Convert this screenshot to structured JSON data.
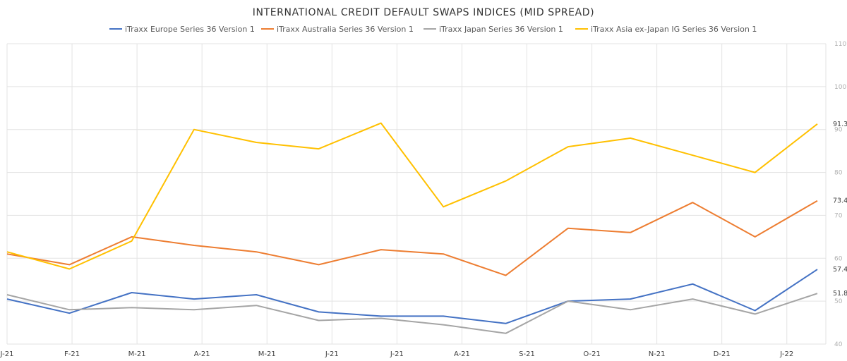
{
  "chart_data": {
    "type": "line",
    "title": "INTERNATIONAL CREDIT DEFAULT SWAPS INDICES (MID SPREAD)",
    "xlabel": "",
    "ylabel": "",
    "ylim": [
      40,
      110
    ],
    "yticks": [
      40,
      50,
      60,
      70,
      80,
      90,
      100,
      110
    ],
    "grid": true,
    "legend_position": "top",
    "x_tick_labels": [
      "J-21",
      "F-21",
      "M-21",
      "A-21",
      "M-21",
      "J-21",
      "J-21",
      "A-21",
      "S-21",
      "O-21",
      "N-21",
      "D-21",
      "J-22"
    ],
    "x": [
      "J-21",
      "F-21",
      "M-21",
      "A-21",
      "M-21",
      "J-21",
      "J-21",
      "A-21",
      "S-21",
      "O-21",
      "N-21",
      "D-21",
      "J-22",
      "end"
    ],
    "series": [
      {
        "name": "iTraxx Europe Series 36 Version 1",
        "color": "#4472C4",
        "end_label": "57.4",
        "values": [
          50.5,
          47.2,
          52.0,
          50.5,
          51.5,
          47.5,
          46.5,
          46.5,
          44.8,
          50.0,
          50.5,
          54.0,
          47.8,
          57.4
        ]
      },
      {
        "name": "iTraxx Australia Series 36 Version 1",
        "color": "#ED7D31",
        "end_label": "73.4",
        "values": [
          61.0,
          58.5,
          65.0,
          63.0,
          61.5,
          58.5,
          62.0,
          61.0,
          56.0,
          67.0,
          66.0,
          73.0,
          65.0,
          73.4
        ]
      },
      {
        "name": "iTraxx Japan Series 36 Version 1",
        "color": "#A5A5A5",
        "end_label": "51.8",
        "values": [
          51.5,
          48.0,
          48.5,
          48.0,
          49.0,
          45.5,
          46.0,
          44.5,
          42.5,
          50.0,
          48.0,
          50.5,
          47.0,
          51.8
        ]
      },
      {
        "name": "iTraxx Asia ex-Japan IG Series 36 Version 1",
        "color": "#FFC000",
        "end_label": "91.3",
        "values": [
          61.5,
          57.5,
          64.0,
          90.0,
          87.0,
          85.5,
          91.5,
          72.0,
          78.0,
          86.0,
          88.0,
          84.0,
          80.0,
          91.3
        ]
      }
    ]
  }
}
